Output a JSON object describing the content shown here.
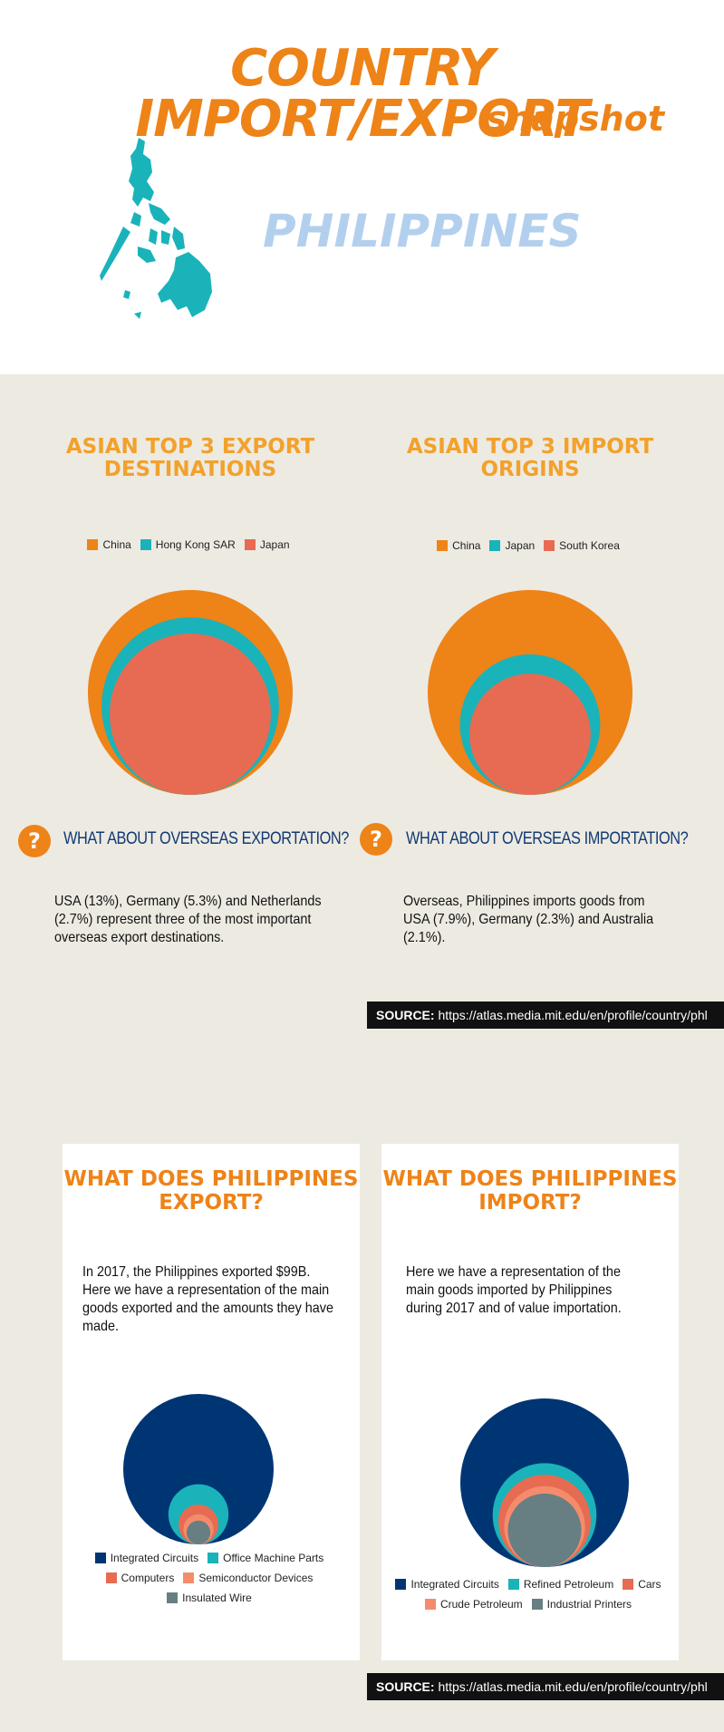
{
  "header": {
    "title": "COUNTRY IMPORT/EXPORT",
    "subtitle": "snapshot",
    "country": "PHILIPPINES",
    "map_icon": "philippines-map-icon",
    "map_color": "#1ab3b9"
  },
  "colors": {
    "orange": "#ee8318",
    "teal": "#1ab3b9",
    "coral": "#e76b52",
    "navy": "#003574",
    "salmon": "#f48c6c",
    "slate": "#677f82",
    "background": "#edeae2"
  },
  "asian_export": {
    "title": "ASIAN TOP 3 EXPORT DESTINATIONS",
    "question": "WHAT ABOUT OVERSEAS EXPORTATION?",
    "text": "USA (13%), Germany  (5.3%) and Netherlands (2.7%) represent three of the most important overseas export destinations."
  },
  "asian_import": {
    "title": "ASIAN TOP 3 IMPORT ORIGINS",
    "question": "WHAT ABOUT OVERSEAS IMPORTATION?",
    "text": "Overseas, Philippines imports goods from USA (7.9%), Germany (2.3%) and Australia  (2.1%)."
  },
  "source": {
    "label": "SOURCE:",
    "url": "https://atlas.media.mit.edu/en/profile/country/phl"
  },
  "export_card": {
    "title": "WHAT DOES PHILIPPINES EXPORT?",
    "text": "In 2017, the Philippines exported $99B.  Here we have a representation of the main goods exported and the amounts they have made."
  },
  "import_card": {
    "title": "WHAT DOES PHILIPPINES IMPORT?",
    "text": "Here we have a representation of the main goods imported by Philippines  during 2017 and of value importation."
  },
  "chart_data": [
    {
      "type": "bubble",
      "categories": [
        "China",
        "Hong Kong SAR",
        "Japan"
      ],
      "values": [
        1.0,
        0.75,
        0.62
      ],
      "colors": [
        "#ee8318",
        "#1ab3b9",
        "#e76b52"
      ],
      "legend_position": "top"
    },
    {
      "type": "bubble",
      "categories": [
        "China",
        "Japan",
        "South Korea"
      ],
      "values": [
        1.0,
        0.47,
        0.35
      ],
      "colors": [
        "#ee8318",
        "#1ab3b9",
        "#e76b52"
      ],
      "legend_position": "top"
    },
    {
      "type": "bubble",
      "categories": [
        "Integrated Circuits",
        "Office Machine Parts",
        "Computers",
        "Semiconductor Devices",
        "Insulated Wire"
      ],
      "values": [
        1.0,
        0.16,
        0.07,
        0.04,
        0.025
      ],
      "colors": [
        "#003574",
        "#1ab3b9",
        "#e76b52",
        "#f48c6c",
        "#677f82"
      ],
      "legend_position": "bottom"
    },
    {
      "type": "bubble",
      "categories": [
        "Integrated Circuits",
        "Refined Petroleum",
        "Cars",
        "Crude Petroleum",
        "Industrial Printers"
      ],
      "values": [
        1.0,
        0.38,
        0.3,
        0.23,
        0.19
      ],
      "colors": [
        "#003574",
        "#1ab3b9",
        "#e76b52",
        "#f48c6c",
        "#677f82"
      ],
      "legend_position": "bottom"
    }
  ]
}
